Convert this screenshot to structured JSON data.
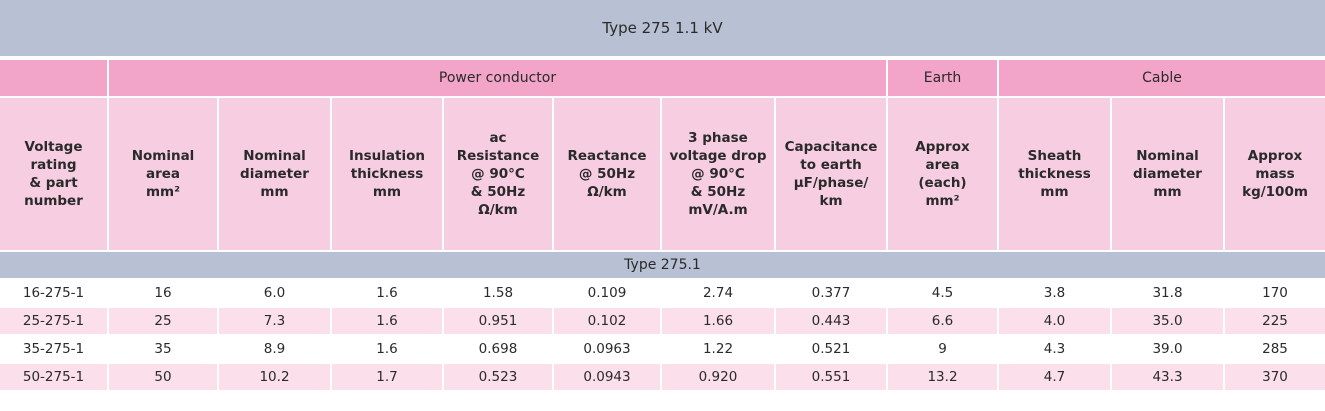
{
  "title": "Type 275  1.1 kV",
  "groups": {
    "power": "Power conductor",
    "earth": "Earth",
    "cable": "Cable"
  },
  "headers": [
    [
      "Voltage",
      "rating",
      "& part",
      "number"
    ],
    [
      "Nominal",
      "area",
      "mm²"
    ],
    [
      "Nominal",
      "diameter",
      "mm"
    ],
    [
      "Insulation",
      "thickness",
      "mm"
    ],
    [
      "ac",
      "Resistance",
      "@ 90°C",
      "& 50Hz",
      "Ω/km"
    ],
    [
      "Reactance",
      "@ 50Hz",
      "Ω/km"
    ],
    [
      "3 phase",
      "voltage drop",
      "@ 90°C",
      "& 50Hz",
      "mV/A.m"
    ],
    [
      "Capacitance",
      "to earth",
      "μF/phase/",
      "km"
    ],
    [
      "Approx",
      "area",
      "(each)",
      "mm²"
    ],
    [
      "Sheath",
      "thickness",
      "mm"
    ],
    [
      "Nominal",
      "diameter",
      "mm"
    ],
    [
      "Approx",
      "mass",
      "kg/100m"
    ]
  ],
  "section": "Type 275.1",
  "rows": [
    [
      "16-275-1",
      "16",
      "6.0",
      "1.6",
      "1.58",
      "0.109",
      "2.74",
      "0.377",
      "4.5",
      "3.8",
      "31.8",
      "170"
    ],
    [
      "25-275-1",
      "25",
      "7.3",
      "1.6",
      "0.951",
      "0.102",
      "1.66",
      "0.443",
      "6.6",
      "4.0",
      "35.0",
      "225"
    ],
    [
      "35-275-1",
      "35",
      "8.9",
      "1.6",
      "0.698",
      "0.0963",
      "1.22",
      "0.521",
      "9",
      "4.3",
      "39.0",
      "285"
    ],
    [
      "50-275-1",
      "50",
      "10.2",
      "1.7",
      "0.523",
      "0.0943",
      "0.920",
      "0.551",
      "13.2",
      "4.7",
      "43.3",
      "370"
    ]
  ]
}
